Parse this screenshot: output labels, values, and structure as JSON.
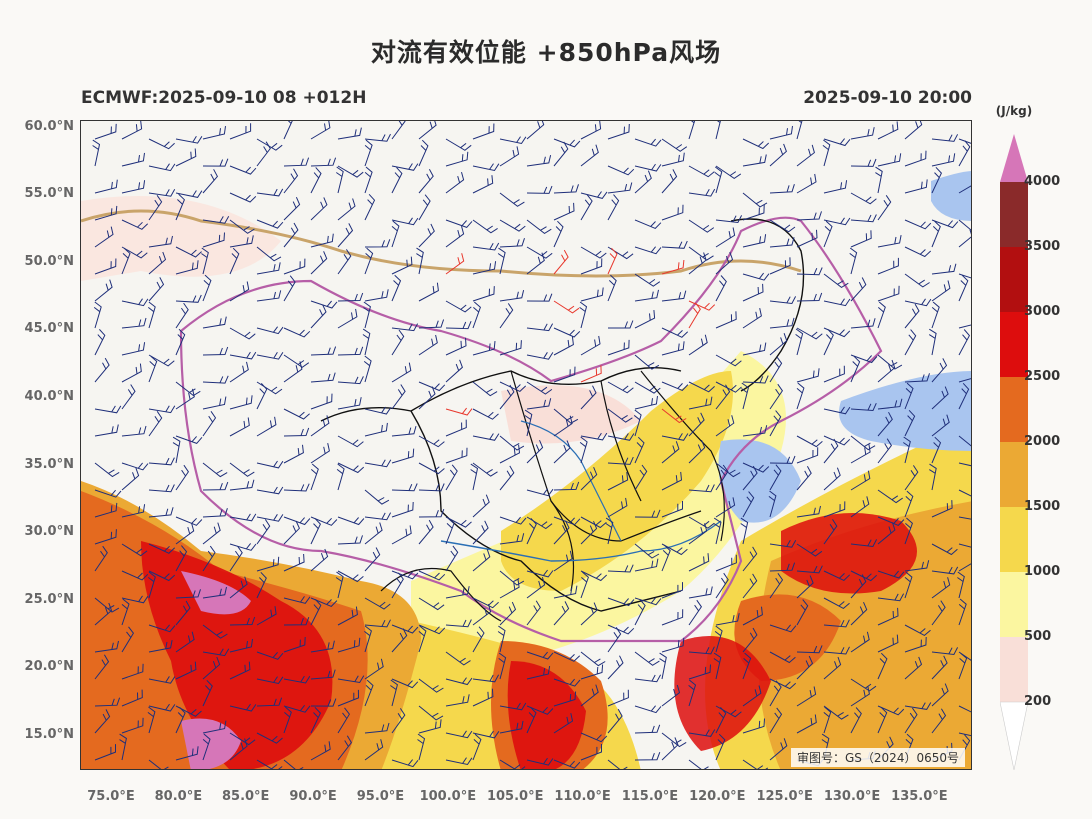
{
  "title": "对流有效位能 +850hPa风场",
  "header": {
    "model_run": "ECMWF:2025-09-10 08 +012H",
    "valid_time": "2025-09-10 20:00"
  },
  "map": {
    "lon_range": [
      72.7,
      138.9
    ],
    "lat_range": [
      12.4,
      60.5
    ],
    "lat_ticks": [
      "60.0°N",
      "55.0°N",
      "50.0°N",
      "45.0°N",
      "40.0°N",
      "35.0°N",
      "30.0°N",
      "25.0°N",
      "20.0°N",
      "15.0°N"
    ],
    "lon_ticks": [
      "75.0°E",
      "80.0°E",
      "85.0°E",
      "90.0°E",
      "95.0°E",
      "100.0°E",
      "105.0°E",
      "110.0°E",
      "115.0°E",
      "120.0°E",
      "125.0°E",
      "130.0°E",
      "135.0°E"
    ],
    "review_number": "审图号：GS（2024）0650号",
    "wind_barb_colors": {
      "normal": "#1f2f7a",
      "strong": "#e8382d"
    }
  },
  "colorbar": {
    "unit": "(J/kg)",
    "labels": [
      "4000",
      "3500",
      "3000",
      "2500",
      "2000",
      "1500",
      "1000",
      "500",
      "200"
    ],
    "colors": [
      "#8a2a2a",
      "#b20f10",
      "#dd0d0d",
      "#e46a1f",
      "#eba934",
      "#f5d84c",
      "#fbf6a0",
      "#f9dfd8"
    ],
    "extend_high_color": "#d676b8"
  }
}
